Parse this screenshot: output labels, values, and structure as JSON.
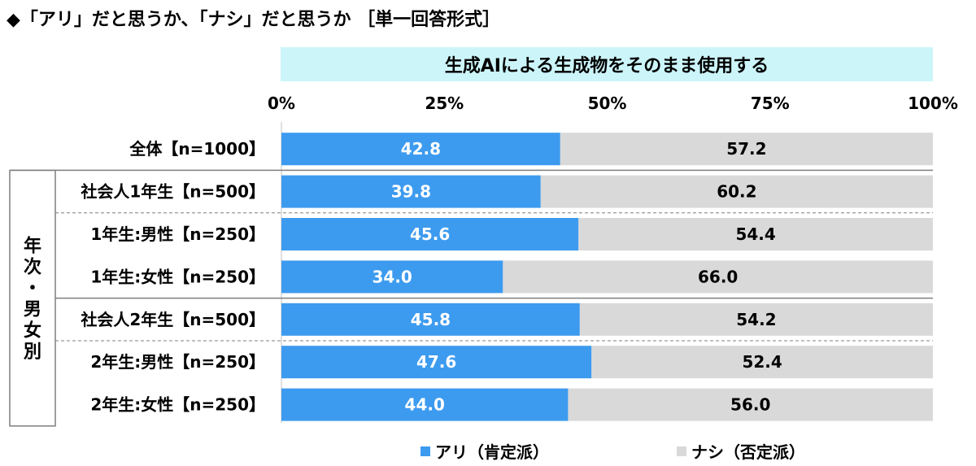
{
  "title": "◆「アリ」だと思うか、「ナシ」だと思うか ［単一回答形式］",
  "header": "生成AIによる生成物をそのまま使用する",
  "group_label": "年次・男女別",
  "colors": {
    "ari": "#3d9bef",
    "nashi": "#d9d9d9",
    "header_bg": "#ccf5fa"
  },
  "legend": {
    "ari": "アリ（肯定派）",
    "nashi": "ナシ（否定派）"
  },
  "chart_data": {
    "type": "bar",
    "stacked": true,
    "orientation": "horizontal",
    "x_ticks": [
      "0%",
      "25%",
      "50%",
      "75%",
      "100%"
    ],
    "xlim": [
      0,
      100
    ],
    "categories": [
      "全体【n=1000】",
      "社会人1年生【n=500】",
      "1年生:男性【n=250】",
      "1年生:女性【n=250】",
      "社会人2年生【n=500】",
      "2年生:男性【n=250】",
      "2年生:女性【n=250】"
    ],
    "series": [
      {
        "name": "アリ（肯定派）",
        "values": [
          "42.8",
          "39.8",
          "45.6",
          "34.0",
          "45.8",
          "47.6",
          "44.0"
        ]
      },
      {
        "name": "ナシ（否定派）",
        "values": [
          "57.2",
          "60.2",
          "54.4",
          "66.0",
          "54.2",
          "52.4",
          "56.0"
        ]
      }
    ]
  }
}
